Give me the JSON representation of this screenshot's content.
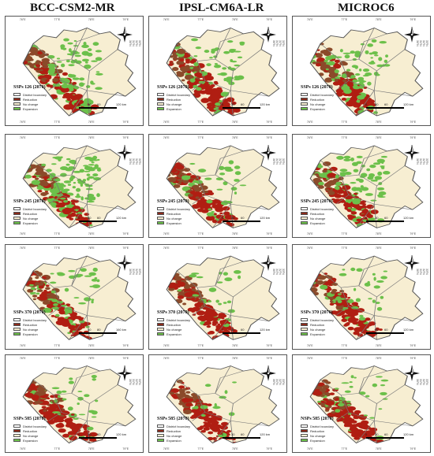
{
  "columns": [
    "BCC-CSM2-MR",
    "IPSL-CM6A-LR",
    "MICROC6"
  ],
  "legend_items": [
    {
      "label": "District boundary",
      "color": "#ffffff"
    },
    {
      "label": "Reduction",
      "color": "#8b2a1a"
    },
    {
      "label": "No change",
      "color": "#f7eed2"
    },
    {
      "label": "Expansion",
      "color": "#6cc04a"
    }
  ],
  "colors": {
    "land": "#f7eed2",
    "boundary": "#777777",
    "reduction": "#b01e12",
    "stable": "#8b4a2a",
    "expansion": "#6cc04a"
  },
  "rows": [
    {
      "panels": [
        {
          "ssp": "SSPs 126 (2070)",
          "scale": [
            "0",
            "30",
            "60",
            "120 km"
          ]
        },
        {
          "ssp": "SSPs 126 (2070)",
          "scale": [
            "0",
            "30",
            "60",
            "120 km"
          ]
        },
        {
          "ssp": "SSPs 126 (2070)",
          "scale": [
            "0",
            "30",
            "60",
            "120 km"
          ]
        }
      ]
    },
    {
      "panels": [
        {
          "ssp": "SSPs 245 (2070)",
          "scale": [
            "0",
            "30",
            "60",
            "120 km"
          ]
        },
        {
          "ssp": "SSPs 245 (2070)",
          "scale": [
            "0",
            "30",
            "60",
            "120 km"
          ]
        },
        {
          "ssp": "SSPs 245 (2070)",
          "scale": [
            "0",
            "30",
            "60",
            "120 km"
          ]
        }
      ]
    },
    {
      "panels": [
        {
          "ssp": "SSPs 370 (2070)",
          "scale": [
            "0",
            "40",
            "80",
            "160 km"
          ]
        },
        {
          "ssp": "SSPs 370 (2070)",
          "scale": [
            "0",
            "30",
            "60",
            "120 km"
          ]
        },
        {
          "ssp": "SSPs 370 (2070)",
          "scale": [
            "0",
            "30",
            "60",
            "120 km"
          ]
        }
      ]
    },
    {
      "panels": [
        {
          "ssp": "SSPs 585 (2070)",
          "scale": [
            "0",
            "30",
            "60",
            "120 km"
          ]
        },
        {
          "ssp": "SSPs 585 (2070)",
          "scale": [
            "0",
            "30",
            "60",
            "120 km"
          ]
        },
        {
          "ssp": "NSPs 585 (2070)",
          "scale": [
            "0",
            "30",
            "60",
            "120 km"
          ]
        }
      ]
    }
  ],
  "expansion_level": [
    [
      0.55,
      0.35,
      0.45
    ],
    [
      0.75,
      0.2,
      0.5
    ],
    [
      0.3,
      0.15,
      0.25
    ],
    [
      0.2,
      0.1,
      0.2
    ]
  ],
  "tick_labels": {
    "x": [
      "76°E",
      "77°E",
      "78°E",
      "79°E"
    ],
    "y": [
      "33°N",
      "32°N",
      "31°N",
      "30°N"
    ]
  }
}
